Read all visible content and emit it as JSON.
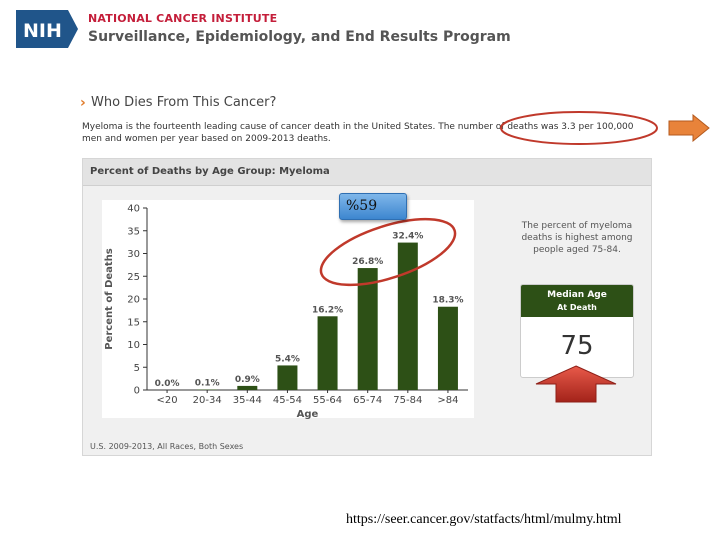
{
  "header": {
    "logo_text": "NIH",
    "org_name": "NATIONAL CANCER INSTITUTE",
    "program_name": "Surveillance, Epidemiology, and End Results Program"
  },
  "section": {
    "title": "Who Dies From This Cancer?",
    "intro_line1": "Myeloma is the fourteenth leading cause of cancer death in the United States. The number of deaths was 3.3 per 100,000",
    "intro_line2": "men and women per year based on 2009-2013 deaths."
  },
  "panel": {
    "title": "Percent of Deaths by Age Group: Myeloma",
    "footer": "U.S. 2009-2013, All Races, Both Sexes"
  },
  "callout": "%59",
  "side_text": "The percent of myeloma deaths is highest among people aged 75-84.",
  "median": {
    "label_line1": "Median Age",
    "label_line2": "At Death",
    "value": "75"
  },
  "source_url": "https://seer.cancer.gov/statfacts/html/mulmy.html",
  "colors": {
    "bar": "#2d5016",
    "annotation_red": "#c0392b",
    "arrow_orange": "#e8833a",
    "nih_blue": "#20558a"
  },
  "chart_data": {
    "type": "bar",
    "title": "Percent of Deaths by Age Group: Myeloma",
    "xlabel": "Age",
    "ylabel": "Percent of Deaths",
    "categories": [
      "<20",
      "20-34",
      "35-44",
      "45-54",
      "55-64",
      "65-74",
      "75-84",
      ">84"
    ],
    "values": [
      0.0,
      0.1,
      0.9,
      5.4,
      16.2,
      26.8,
      32.4,
      18.3
    ],
    "data_labels": [
      "0.0%",
      "0.1%",
      "0.9%",
      "5.4%",
      "16.2%",
      "26.8%",
      "32.4%",
      "18.3%"
    ],
    "ylim": [
      0,
      40
    ],
    "yticks": [
      0,
      5,
      10,
      15,
      20,
      25,
      30,
      35,
      40
    ],
    "grid": false
  }
}
